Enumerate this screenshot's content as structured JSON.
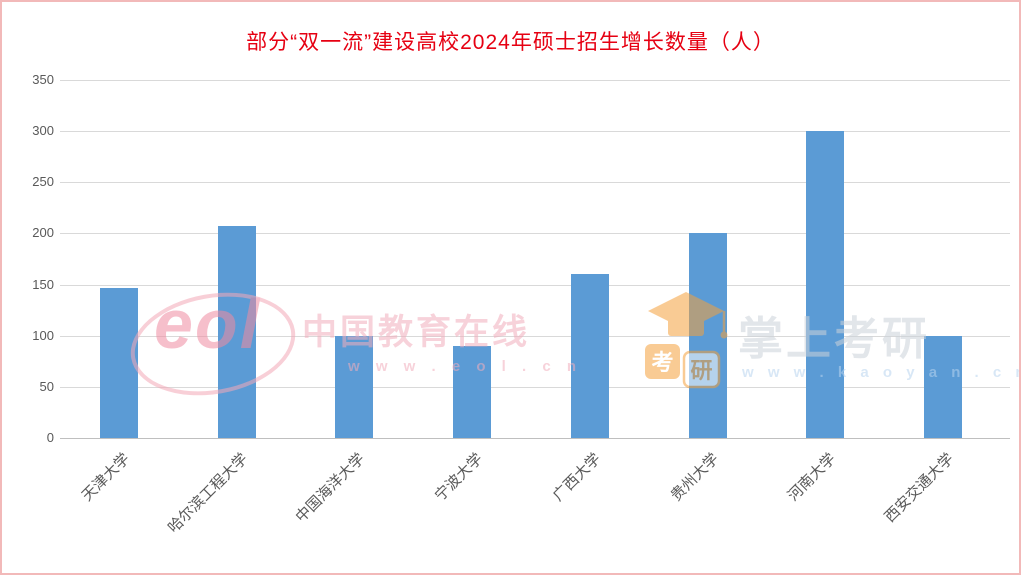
{
  "title": "部分“双一流”建设高校2024年硕士招生增长数量（人）",
  "colors": {
    "title_red": "#e60012",
    "bar_blue": "#5B9BD5",
    "gridline": "#d9d9d9",
    "axis_text": "#595959",
    "page_border_pink": "#f2b9b9"
  },
  "chart_data": {
    "type": "bar",
    "title": "部分“双一流”建设高校2024年硕士招生增长数量（人）",
    "categories": [
      "天津大学",
      "哈尔滨工程大学",
      "中国海洋大学",
      "宁波大学",
      "广西大学",
      "贵州大学",
      "河南大学",
      "西安交通大学"
    ],
    "values": [
      147,
      207,
      100,
      90,
      160,
      200,
      300,
      100
    ],
    "xlabel": "",
    "ylabel": "",
    "ylim": [
      0,
      350
    ],
    "yticks": [
      0,
      50,
      100,
      150,
      200,
      250,
      300,
      350
    ],
    "grid": true,
    "legend": "none",
    "bar_color": "#5B9BD5",
    "x_tick_rotation_deg": -45
  },
  "watermarks": {
    "eol": {
      "logo": "eol",
      "name": "中国教育在线",
      "url": "w w w . e o l . c n"
    },
    "kaoyan": {
      "cap_icon": "graduation-cap-icon",
      "cap_char_1": "考",
      "cap_char_2": "研",
      "name": "掌上考研",
      "url": "w w w . k a o y a n . c n"
    }
  }
}
